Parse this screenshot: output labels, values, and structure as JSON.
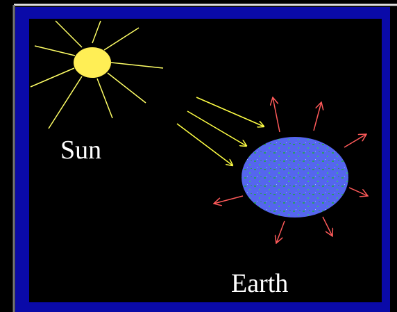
{
  "nodes": [
    {
      "label": "Sun"
    },
    {
      "label": "Earth"
    }
  ]
}
